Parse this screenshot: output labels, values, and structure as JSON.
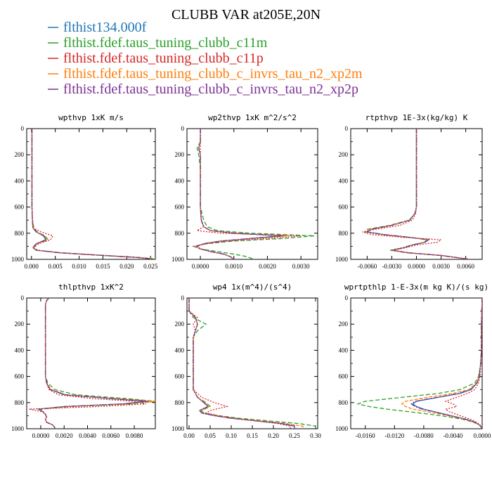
{
  "title": "CLUBB VAR at205E,20N",
  "legend": [
    {
      "label": "flthist134.000f",
      "color": "#1f77b4",
      "dash": ""
    },
    {
      "label": "flthist.fdef.taus_tuning_clubb_c11m",
      "color": "#2ca02c",
      "dash": "6,3"
    },
    {
      "label": "flthist.fdef.taus_tuning_clubb_c11p",
      "color": "#d62728",
      "dash": "2,2"
    },
    {
      "label": "flthist.fdef.taus_tuning_clubb_c_invrs_tau_n2_xp2m",
      "color": "#ff7f0e",
      "dash": "5,2"
    },
    {
      "label": "flthist.fdef.taus_tuning_clubb_c_invrs_tau_n2_xp2p",
      "color": "#7b3294",
      "dash": "7,2,2,2"
    }
  ],
  "chart_data": [
    {
      "type": "line",
      "title": "wpthvp  1xK m/s",
      "xlim": [
        -0.001,
        0.026
      ],
      "ylim": [
        1000,
        0
      ],
      "xticks": [
        0.0,
        0.005,
        0.01,
        0.015,
        0.02,
        0.025
      ],
      "xtick_labels": [
        "0.000",
        "0.005",
        "0.010",
        "0.015",
        "0.020",
        "0.025"
      ],
      "yticks": [
        0,
        200,
        400,
        600,
        800,
        1000
      ],
      "y": [
        0,
        100,
        200,
        300,
        400,
        500,
        600,
        700,
        760,
        790,
        820,
        850,
        880,
        910,
        930,
        950,
        970,
        985,
        995,
        1000
      ],
      "series": [
        {
          "x": [
            0.0001,
            0.0001,
            0.0001,
            0.0001,
            0.0001,
            0.0001,
            0.0001,
            0.0002,
            0.0003,
            0.001,
            0.0025,
            0.003,
            0.001,
            0.0003,
            0.001,
            0.006,
            0.015,
            0.022,
            0.025,
            0.025
          ]
        },
        {
          "x": [
            0.0001,
            0.0001,
            0.0001,
            0.0001,
            0.0001,
            0.0001,
            0.0001,
            0.0002,
            0.0005,
            0.0012,
            0.0028,
            0.0035,
            0.0012,
            0.0004,
            0.0012,
            0.0065,
            0.0155,
            0.0225,
            0.0255,
            0.0255
          ]
        },
        {
          "x": [
            0.0001,
            0.0001,
            0.0001,
            0.0001,
            0.0001,
            0.0001,
            0.0001,
            0.0002,
            0.0004,
            0.002,
            0.0045,
            0.004,
            0.0015,
            0.0005,
            0.0012,
            0.006,
            0.015,
            0.022,
            0.025,
            0.025
          ]
        },
        {
          "x": [
            0.0001,
            0.0001,
            0.0001,
            0.0001,
            0.0001,
            0.0001,
            0.0001,
            0.0002,
            0.0003,
            0.001,
            0.0027,
            0.0032,
            0.0011,
            0.0003,
            0.001,
            0.006,
            0.015,
            0.022,
            0.025,
            0.025
          ]
        },
        {
          "x": [
            0.0001,
            0.0001,
            0.0001,
            0.0001,
            0.0001,
            0.0001,
            0.0001,
            0.0002,
            0.0003,
            0.001,
            0.0026,
            0.0031,
            0.001,
            0.0003,
            0.001,
            0.006,
            0.015,
            0.022,
            0.025,
            0.025
          ]
        }
      ]
    },
    {
      "type": "line",
      "title": "wp2thvp  1xK m^2/s^2",
      "xlim": [
        -0.0004,
        0.0035
      ],
      "ylim": [
        1000,
        0
      ],
      "xticks": [
        0.0,
        0.001,
        0.002,
        0.003
      ],
      "xtick_labels": [
        "0.0000",
        "0.0010",
        "0.0020",
        "0.0030"
      ],
      "yticks": [
        0,
        200,
        400,
        600,
        800,
        1000
      ],
      "y": [
        0,
        100,
        150,
        200,
        300,
        400,
        500,
        600,
        700,
        750,
        780,
        800,
        820,
        840,
        860,
        880,
        900,
        920,
        940,
        960,
        980,
        1000
      ],
      "series": [
        {
          "x": [
            0.0,
            0.0,
            -5e-05,
            0.0,
            0.0,
            0.0,
            0.0,
            0.0,
            3e-05,
            0.0001,
            0.0003,
            0.001,
            0.0024,
            0.0015,
            0.0006,
            0.0001,
            -0.0001,
            0.0,
            0.0003,
            0.0007,
            0.0009,
            0.001
          ]
        },
        {
          "x": [
            0.0,
            0.0,
            -0.0001,
            -5e-05,
            0.0,
            0.0,
            0.0,
            0.0,
            0.0001,
            0.0002,
            0.0005,
            0.0015,
            0.0034,
            0.0025,
            0.001,
            0.0002,
            -0.0002,
            0.0,
            0.0005,
            0.001,
            0.0014,
            0.0016
          ]
        },
        {
          "x": [
            0.0,
            0.0,
            0.0,
            0.0,
            0.0,
            0.0,
            0.0,
            0.0,
            2e-05,
            0.0001,
            -0.0001,
            0.0006,
            0.003,
            0.002,
            0.0008,
            0.0002,
            -0.0002,
            0.0,
            0.0003,
            0.0007,
            0.0009,
            0.001
          ]
        },
        {
          "x": [
            0.0,
            0.0,
            -5e-05,
            0.0,
            0.0,
            0.0,
            0.0,
            0.0,
            3e-05,
            0.0001,
            0.0003,
            0.0011,
            0.0026,
            0.0016,
            0.0006,
            0.0001,
            -0.0001,
            0.0,
            0.0003,
            0.0007,
            0.0009,
            0.001
          ]
        },
        {
          "x": [
            0.0,
            0.0,
            -5e-05,
            0.0,
            0.0,
            0.0,
            0.0,
            0.0,
            3e-05,
            0.0001,
            0.0003,
            0.001,
            0.0025,
            0.0015,
            0.0006,
            0.0001,
            -0.0001,
            0.0,
            0.0003,
            0.0007,
            0.0009,
            0.001
          ]
        }
      ]
    },
    {
      "type": "line",
      "title": "rtpthvp  1E-3x(kg/kg) K",
      "xlim": [
        -0.008,
        0.008
      ],
      "ylim": [
        1000,
        0
      ],
      "xticks": [
        -0.006,
        -0.003,
        0.0,
        0.003,
        0.006
      ],
      "xtick_labels": [
        "-0.0060",
        "-0.0030",
        "0.0000",
        "0.0030",
        "0.0060"
      ],
      "yticks": [
        0,
        200,
        400,
        600,
        800,
        1000
      ],
      "y": [
        0,
        200,
        400,
        600,
        650,
        700,
        740,
        770,
        790,
        810,
        830,
        850,
        870,
        890,
        910,
        930,
        950,
        970,
        1000
      ],
      "series": [
        {
          "x": [
            0.0,
            0.0,
            0.0,
            0.0,
            -0.0002,
            -0.0008,
            -0.003,
            -0.0055,
            -0.006,
            -0.004,
            -0.001,
            0.0015,
            0.001,
            -0.0005,
            -0.0015,
            -0.003,
            -0.001,
            0.003,
            0.0065
          ]
        },
        {
          "x": [
            0.0,
            0.0,
            0.0,
            0.0,
            -0.0002,
            -0.0009,
            -0.0033,
            -0.006,
            -0.0063,
            -0.0042,
            -0.0012,
            0.0013,
            0.0009,
            -0.0006,
            -0.0016,
            -0.0032,
            -0.0011,
            0.003,
            0.0065
          ]
        },
        {
          "x": [
            0.0,
            0.0,
            0.0,
            0.0,
            -0.0001,
            -0.0005,
            -0.002,
            -0.005,
            -0.0066,
            -0.0055,
            -0.002,
            0.003,
            0.0025,
            0.0,
            -0.0012,
            -0.0028,
            -0.0009,
            0.003,
            0.0065
          ]
        },
        {
          "x": [
            0.0,
            0.0,
            0.0,
            0.0,
            -0.0002,
            -0.0008,
            -0.0031,
            -0.0056,
            -0.0061,
            -0.0041,
            -0.0011,
            0.0014,
            0.001,
            -0.0005,
            -0.0015,
            -0.003,
            -0.001,
            0.003,
            0.0065
          ]
        },
        {
          "x": [
            0.0,
            0.0,
            0.0,
            0.0,
            -0.0002,
            -0.0008,
            -0.003,
            -0.0055,
            -0.006,
            -0.004,
            -0.001,
            0.0015,
            0.001,
            -0.0005,
            -0.0015,
            -0.003,
            -0.001,
            0.003,
            0.0065
          ]
        }
      ]
    },
    {
      "type": "line",
      "title": "thlpthvp  1xK^2",
      "xlim": [
        -0.0012,
        0.0098
      ],
      "ylim": [
        1000,
        0
      ],
      "xticks": [
        0.0,
        0.002,
        0.004,
        0.006,
        0.008
      ],
      "xtick_labels": [
        "0.0000",
        "0.0020",
        "0.0040",
        "0.0060",
        "0.0080"
      ],
      "yticks": [
        0,
        200,
        400,
        600,
        800,
        1000
      ],
      "y": [
        0,
        20,
        50,
        100,
        200,
        300,
        400,
        500,
        600,
        650,
        700,
        740,
        770,
        790,
        810,
        830,
        850,
        870,
        890,
        910,
        930,
        950,
        970,
        990,
        1000
      ],
      "series": [
        {
          "x": [
            0.0007,
            0.0005,
            0.0004,
            0.0004,
            0.0004,
            0.0004,
            0.0004,
            0.0004,
            0.0004,
            0.0005,
            0.0008,
            0.002,
            0.006,
            0.009,
            0.007,
            0.002,
            -0.0002,
            0.0002,
            0.0004,
            0.0005,
            0.0004,
            0.0005,
            0.001,
            0.0012,
            0.0012
          ]
        },
        {
          "x": [
            0.0007,
            0.0005,
            0.0004,
            0.0004,
            0.0004,
            0.0004,
            0.0004,
            0.0004,
            0.0004,
            0.0006,
            0.0012,
            0.003,
            0.0075,
            0.0098,
            0.0078,
            0.0025,
            0.0,
            0.0002,
            0.0004,
            0.0005,
            0.0004,
            0.0005,
            0.001,
            0.0012,
            0.0012
          ]
        },
        {
          "x": [
            0.0007,
            0.0005,
            0.0004,
            0.0004,
            0.0004,
            0.0004,
            0.0004,
            0.0004,
            0.0004,
            0.0005,
            0.0007,
            0.0015,
            0.0045,
            0.008,
            0.009,
            0.005,
            -0.001,
            0.0001,
            0.0004,
            0.0005,
            0.0004,
            0.0005,
            0.001,
            0.0012,
            0.0012
          ]
        },
        {
          "x": [
            0.0007,
            0.0005,
            0.0004,
            0.0004,
            0.0004,
            0.0004,
            0.0004,
            0.0004,
            0.0004,
            0.0005,
            0.0009,
            0.0022,
            0.0065,
            0.0098,
            0.0074,
            0.0022,
            -0.0001,
            0.0002,
            0.0004,
            0.0005,
            0.0004,
            0.0005,
            0.001,
            0.0012,
            0.0012
          ]
        },
        {
          "x": [
            0.0007,
            0.0005,
            0.0004,
            0.0004,
            0.0004,
            0.0004,
            0.0004,
            0.0004,
            0.0004,
            0.0005,
            0.0008,
            0.0021,
            0.0062,
            0.0092,
            0.0071,
            0.0021,
            -0.0002,
            0.0002,
            0.0004,
            0.0005,
            0.0004,
            0.0005,
            0.001,
            0.0012,
            0.0012
          ]
        }
      ]
    },
    {
      "type": "line",
      "title": "wp4  1x(m^4)/(s^4)",
      "xlim": [
        -0.005,
        0.305
      ],
      "ylim": [
        1000,
        0
      ],
      "xticks": [
        0.0,
        0.05,
        0.1,
        0.15,
        0.2,
        0.25,
        0.3
      ],
      "xtick_labels": [
        "0.00",
        "0.05",
        "0.10",
        "0.15",
        "0.20",
        "0.25",
        "0.30"
      ],
      "yticks": [
        0,
        200,
        400,
        600,
        800,
        1000
      ],
      "y": [
        0,
        100,
        150,
        200,
        250,
        300,
        400,
        500,
        600,
        700,
        760,
        800,
        830,
        860,
        880,
        900,
        920,
        940,
        960,
        980,
        1000
      ],
      "series": [
        {
          "x": [
            0.0,
            0.0,
            0.015,
            0.02,
            0.015,
            0.01,
            0.01,
            0.01,
            0.01,
            0.01,
            0.02,
            0.035,
            0.045,
            0.025,
            0.03,
            0.06,
            0.1,
            0.16,
            0.22,
            0.25,
            0.25
          ]
        },
        {
          "x": [
            0.0,
            0.0,
            0.01,
            0.04,
            0.02,
            0.01,
            0.01,
            0.01,
            0.01,
            0.01,
            0.02,
            0.04,
            0.05,
            0.03,
            0.035,
            0.07,
            0.12,
            0.19,
            0.26,
            0.3,
            0.3
          ]
        },
        {
          "x": [
            0.0,
            0.0,
            0.02,
            0.01,
            0.015,
            0.01,
            0.01,
            0.01,
            0.01,
            0.01,
            0.03,
            0.06,
            0.09,
            0.05,
            0.04,
            0.07,
            0.11,
            0.16,
            0.21,
            0.24,
            0.24
          ]
        },
        {
          "x": [
            0.0,
            0.0,
            0.015,
            0.02,
            0.015,
            0.01,
            0.01,
            0.01,
            0.01,
            0.01,
            0.02,
            0.037,
            0.048,
            0.027,
            0.031,
            0.062,
            0.1,
            0.17,
            0.23,
            0.27,
            0.27
          ]
        },
        {
          "x": [
            0.0,
            0.0,
            0.015,
            0.02,
            0.015,
            0.01,
            0.01,
            0.01,
            0.01,
            0.01,
            0.02,
            0.035,
            0.045,
            0.025,
            0.03,
            0.06,
            0.1,
            0.16,
            0.22,
            0.25,
            0.25
          ]
        }
      ]
    },
    {
      "type": "line",
      "title": "wprtpthlp  1-E-3x(m kg K)/(s kg)",
      "xlim": [
        -0.018,
        0.0
      ],
      "ylim": [
        1000,
        0
      ],
      "xticks": [
        -0.016,
        -0.012,
        -0.008,
        -0.004,
        0.0
      ],
      "xtick_labels": [
        "-0.0160",
        "-0.0120",
        "-0.0080",
        "-0.0040",
        "0.0000"
      ],
      "yticks": [
        0,
        200,
        400,
        600,
        800,
        1000
      ],
      "y": [
        0,
        200,
        400,
        500,
        600,
        650,
        700,
        730,
        760,
        790,
        810,
        830,
        850,
        870,
        890,
        910,
        930,
        950,
        970,
        990,
        1000
      ],
      "series": [
        {
          "x": [
            0.0,
            -0.0001,
            -0.0001,
            -0.0002,
            -0.0004,
            -0.0007,
            -0.0015,
            -0.003,
            -0.006,
            -0.009,
            -0.0095,
            -0.009,
            -0.008,
            -0.0065,
            -0.005,
            -0.0035,
            -0.002,
            -0.001,
            -0.0004,
            -0.0001,
            0.0
          ]
        },
        {
          "x": [
            0.0,
            -0.0001,
            -0.0001,
            -0.0002,
            -0.0005,
            -0.001,
            -0.003,
            -0.006,
            -0.011,
            -0.016,
            -0.017,
            -0.0155,
            -0.013,
            -0.01,
            -0.007,
            -0.0045,
            -0.0025,
            -0.0012,
            -0.0004,
            -0.0001,
            0.0
          ]
        },
        {
          "x": [
            0.0,
            -0.0001,
            -0.0001,
            -0.0002,
            -0.0003,
            -0.0005,
            -0.001,
            -0.002,
            -0.0035,
            -0.005,
            -0.004,
            -0.0035,
            -0.005,
            -0.0045,
            -0.0035,
            -0.0025,
            -0.0015,
            -0.0008,
            -0.0003,
            -0.0001,
            0.0
          ]
        },
        {
          "x": [
            0.0,
            -0.0001,
            -0.0001,
            -0.0002,
            -0.0004,
            -0.0008,
            -0.0018,
            -0.004,
            -0.0075,
            -0.0105,
            -0.011,
            -0.0105,
            -0.0095,
            -0.0075,
            -0.0055,
            -0.0038,
            -0.0022,
            -0.0011,
            -0.0004,
            -0.0001,
            0.0
          ]
        },
        {
          "x": [
            0.0,
            -0.0001,
            -0.0001,
            -0.0002,
            -0.0004,
            -0.0007,
            -0.0016,
            -0.0032,
            -0.0062,
            -0.0092,
            -0.0097,
            -0.0092,
            -0.0082,
            -0.0066,
            -0.0051,
            -0.0036,
            -0.0021,
            -0.001,
            -0.0004,
            -0.0001,
            0.0
          ]
        }
      ]
    }
  ]
}
